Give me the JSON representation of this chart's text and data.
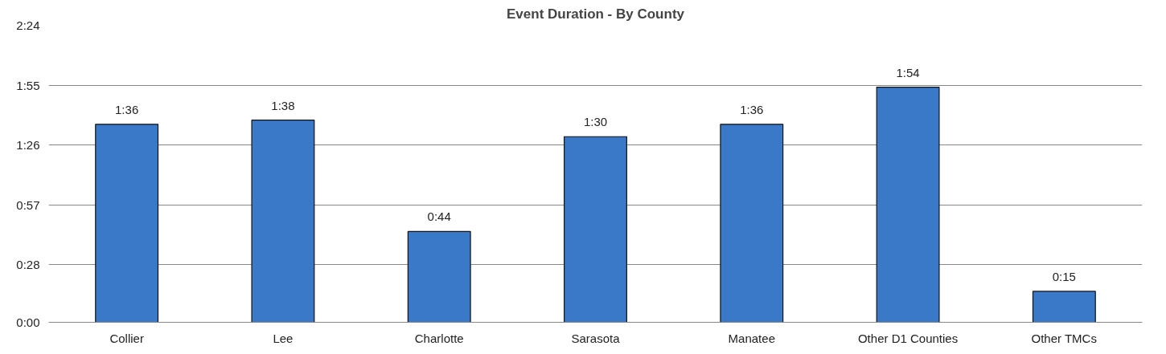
{
  "chart_data": {
    "type": "bar",
    "title": "Event Duration - By County",
    "categories": [
      "Collier",
      "Lee",
      "Charlotte",
      "Sarasota",
      "Manatee",
      "Other D1 Counties",
      "Other TMCs"
    ],
    "values": [
      96,
      98,
      44,
      90,
      96,
      114,
      15
    ],
    "value_labels": [
      "1:36",
      "1:38",
      "0:44",
      "1:30",
      "1:36",
      "1:54",
      "0:15"
    ],
    "color": "#3a78c8",
    "ylim": [
      0,
      144
    ],
    "yticks": [
      {
        "value": 0,
        "label": "0:00"
      },
      {
        "value": 28,
        "label": "0:28"
      },
      {
        "value": 57,
        "label": "0:57"
      },
      {
        "value": 86,
        "label": "1:26"
      },
      {
        "value": 115,
        "label": "1:55"
      },
      {
        "value": 144,
        "label": "2:24"
      }
    ],
    "grid": "y"
  }
}
